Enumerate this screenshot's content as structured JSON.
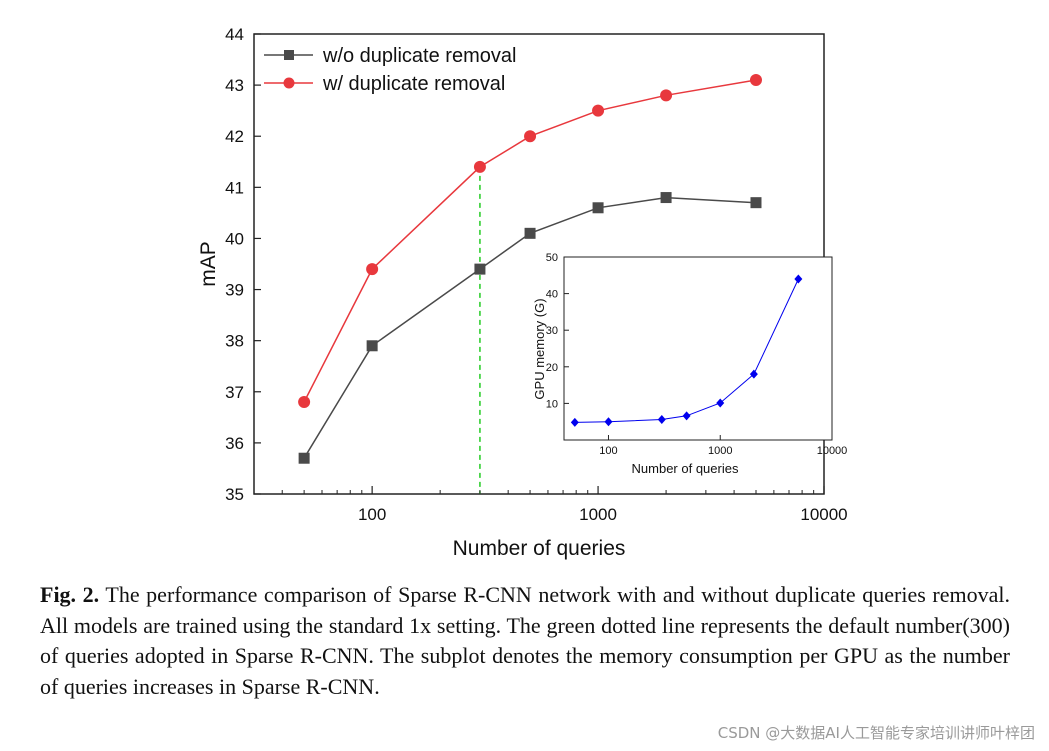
{
  "chart_data": [
    {
      "type": "line",
      "xscale": "log",
      "xlabel": "Number of queries",
      "ylabel": "mAP",
      "xlim": [
        30,
        10000
      ],
      "ylim": [
        35,
        44
      ],
      "xticks": [
        100,
        1000,
        10000
      ],
      "xtick_labels": [
        "100",
        "1000",
        "10000"
      ],
      "yticks": [
        35,
        36,
        37,
        38,
        39,
        40,
        41,
        42,
        43,
        44
      ],
      "ytick_labels": [
        "35",
        "36",
        "37",
        "38",
        "39",
        "40",
        "41",
        "42",
        "43",
        "44"
      ],
      "legend_position": "top-left",
      "series": [
        {
          "name": "w/o duplicate removal",
          "color": "#4a4a4a",
          "marker": "square",
          "x": [
            50,
            100,
            300,
            500,
            1000,
            2000,
            5000
          ],
          "y": [
            35.7,
            37.9,
            39.4,
            40.1,
            40.6,
            40.8,
            40.7
          ]
        },
        {
          "name": "w/ duplicate removal",
          "color": "#e8383d",
          "marker": "circle",
          "x": [
            50,
            100,
            300,
            500,
            1000,
            2000,
            5000
          ],
          "y": [
            36.8,
            39.4,
            41.4,
            42.0,
            42.5,
            42.8,
            43.1
          ]
        }
      ],
      "reference_line": {
        "x": 300,
        "color": "#22cc22",
        "style": "dashed",
        "y_to": 41.4
      }
    },
    {
      "type": "line",
      "position": "inset bottom-right",
      "xscale": "log",
      "xlabel": "Number of queries",
      "ylabel": "GPU memory (G)",
      "xlim": [
        40,
        10000
      ],
      "ylim": [
        0,
        50
      ],
      "xticks": [
        100,
        1000,
        10000
      ],
      "xtick_labels": [
        "100",
        "1000",
        "10000"
      ],
      "yticks": [
        10,
        20,
        30,
        40,
        50
      ],
      "ytick_labels": [
        "10",
        "20",
        "30",
        "40",
        "50"
      ],
      "series": [
        {
          "name": "GPU memory",
          "color": "#0000ee",
          "marker": "diamond",
          "x": [
            50,
            100,
            300,
            500,
            1000,
            2000,
            5000
          ],
          "y": [
            4.8,
            5.0,
            5.6,
            6.6,
            10.1,
            18.0,
            44.0
          ]
        }
      ]
    }
  ],
  "caption": {
    "label": "Fig. 2.",
    "text": "The performance comparison of Sparse R-CNN network with and without duplicate queries removal. All models are trained using the standard 1x setting. The green dotted line represents the default number(300) of queries adopted in Sparse R-CNN. The subplot denotes the memory consumption per GPU as the number of queries increases in Sparse R-CNN."
  },
  "watermark": "CSDN @大数据AI人工智能专家培训讲师叶梓团"
}
